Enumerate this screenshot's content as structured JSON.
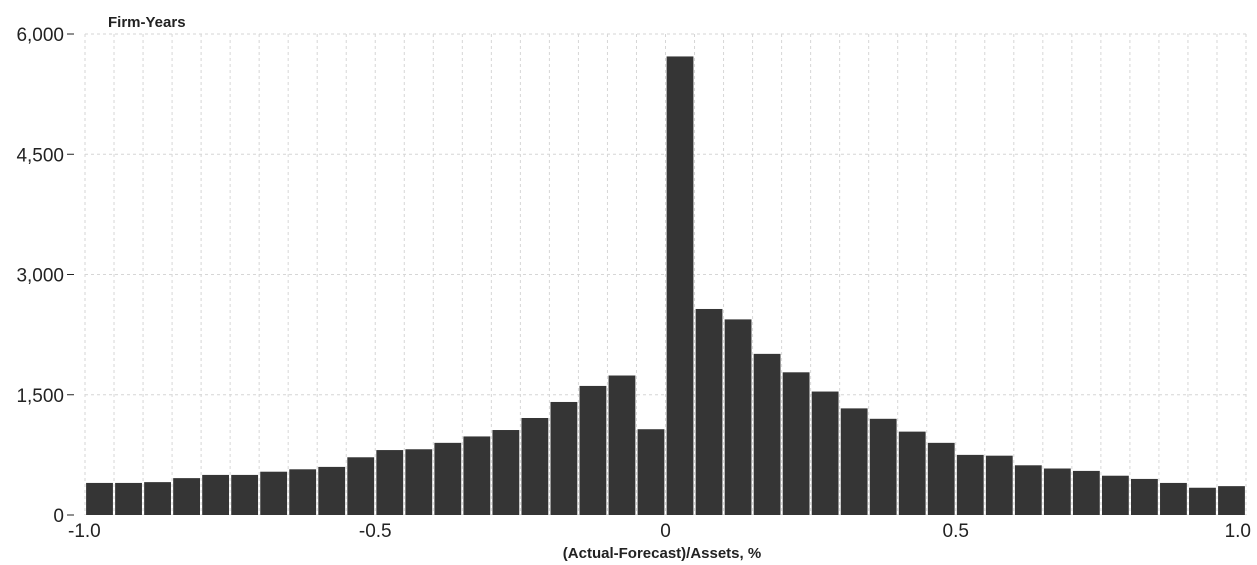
{
  "chart_data": {
    "type": "bar",
    "title": "",
    "xlabel": "(Actual-Forecast)/Assets, %",
    "ylabel": "Firm-Years",
    "xlim": [
      -1.0,
      1.0
    ],
    "ylim": [
      0,
      6000
    ],
    "bin_width": 0.05,
    "x_ticks": [
      "-1.0",
      "-0.5",
      "0",
      "0.5",
      "1.0"
    ],
    "x_tick_values": [
      -1.0,
      -0.5,
      0,
      0.5,
      1.0
    ],
    "y_ticks": [
      "0",
      "1,500",
      "3,000",
      "4,500",
      "6,000"
    ],
    "y_tick_values": [
      0,
      1500,
      3000,
      4500,
      6000
    ],
    "grid": true,
    "bar_color": "#353535",
    "bins": [
      {
        "x": -1.0,
        "value": 400
      },
      {
        "x": -0.95,
        "value": 400
      },
      {
        "x": -0.9,
        "value": 410
      },
      {
        "x": -0.85,
        "value": 460
      },
      {
        "x": -0.8,
        "value": 500
      },
      {
        "x": -0.75,
        "value": 500
      },
      {
        "x": -0.7,
        "value": 540
      },
      {
        "x": -0.65,
        "value": 570
      },
      {
        "x": -0.6,
        "value": 600
      },
      {
        "x": -0.55,
        "value": 720
      },
      {
        "x": -0.5,
        "value": 810
      },
      {
        "x": -0.45,
        "value": 820
      },
      {
        "x": -0.4,
        "value": 900
      },
      {
        "x": -0.35,
        "value": 980
      },
      {
        "x": -0.3,
        "value": 1060
      },
      {
        "x": -0.25,
        "value": 1210
      },
      {
        "x": -0.2,
        "value": 1410
      },
      {
        "x": -0.15,
        "value": 1610
      },
      {
        "x": -0.1,
        "value": 1740
      },
      {
        "x": -0.05,
        "value": 1070
      },
      {
        "x": 0.0,
        "value": 5720
      },
      {
        "x": 0.05,
        "value": 2570
      },
      {
        "x": 0.1,
        "value": 2440
      },
      {
        "x": 0.15,
        "value": 2010
      },
      {
        "x": 0.2,
        "value": 1780
      },
      {
        "x": 0.25,
        "value": 1540
      },
      {
        "x": 0.3,
        "value": 1330
      },
      {
        "x": 0.35,
        "value": 1200
      },
      {
        "x": 0.4,
        "value": 1040
      },
      {
        "x": 0.45,
        "value": 900
      },
      {
        "x": 0.5,
        "value": 750
      },
      {
        "x": 0.55,
        "value": 740
      },
      {
        "x": 0.6,
        "value": 620
      },
      {
        "x": 0.65,
        "value": 580
      },
      {
        "x": 0.7,
        "value": 550
      },
      {
        "x": 0.75,
        "value": 490
      },
      {
        "x": 0.8,
        "value": 450
      },
      {
        "x": 0.85,
        "value": 400
      },
      {
        "x": 0.9,
        "value": 340
      },
      {
        "x": 0.95,
        "value": 360
      }
    ]
  }
}
